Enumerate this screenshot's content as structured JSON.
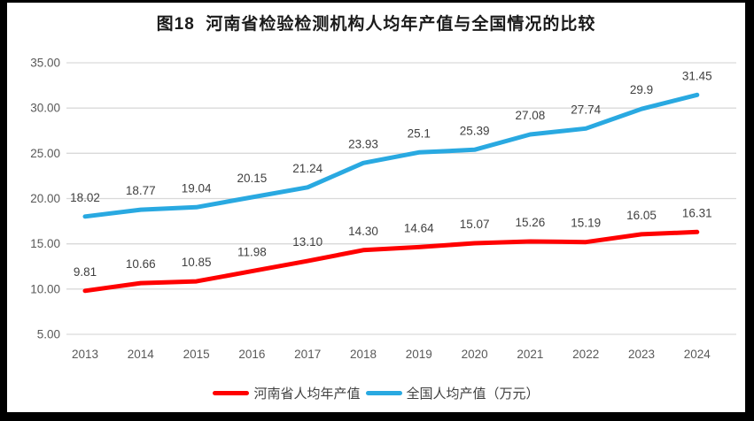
{
  "chart_data": {
    "type": "line",
    "title": "图18  河南省检验检测机构人均年产值与全国情况的比较",
    "categories": [
      "2013",
      "2014",
      "2015",
      "2016",
      "2017",
      "2018",
      "2019",
      "2020",
      "2021",
      "2022",
      "2023",
      "2024"
    ],
    "series": [
      {
        "name": "河南省人均年产值",
        "color": "#FF0000",
        "values": [
          9.81,
          10.66,
          10.85,
          11.98,
          13.1,
          14.3,
          14.64,
          15.07,
          15.26,
          15.19,
          16.05,
          16.31
        ],
        "labels": [
          "9.81",
          "10.66",
          "10.85",
          "11.98",
          "13.10",
          "14.30",
          "14.64",
          "15.07",
          "15.26",
          "15.19",
          "16.05",
          "16.31"
        ]
      },
      {
        "name": "全国人均产值（万元）",
        "color": "#29A9E1",
        "values": [
          18.02,
          18.77,
          19.04,
          20.15,
          21.24,
          23.93,
          25.1,
          25.39,
          27.08,
          27.74,
          29.9,
          31.45
        ],
        "labels": [
          "18.02",
          "18.77",
          "19.04",
          "20.15",
          "21.24",
          "23.93",
          "25.1",
          "25.39",
          "27.08",
          "27.74",
          "29.9",
          "31.45"
        ]
      }
    ],
    "ylim": [
      5,
      35
    ],
    "ytick_step": 5,
    "ytick_labels": [
      "5.00",
      "10.00",
      "15.00",
      "20.00",
      "25.00",
      "30.00",
      "35.00"
    ],
    "grid": true,
    "legend_position": "bottom",
    "colors": {
      "grid": "#D9D9D9",
      "axis_text": "#595959",
      "data_label": "#404040",
      "title_text": "#1A1A1A",
      "frame": "#000000",
      "background": "#FFFFFF"
    }
  }
}
